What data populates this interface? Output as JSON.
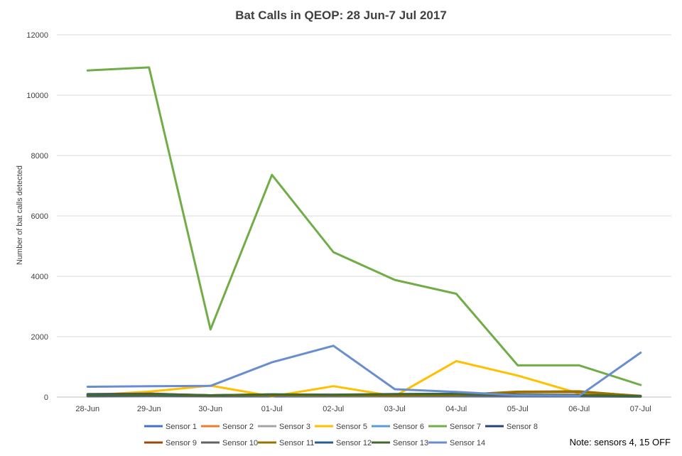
{
  "chart_data": {
    "type": "line",
    "title": "Bat Calls in QEOP: 28 Jun-7 Jul 2017",
    "xlabel": "",
    "ylabel": "Number of bat calls detected",
    "categories": [
      "28-Jun",
      "29-Jun",
      "30-Jun",
      "01-Jul",
      "02-Jul",
      "03-Jul",
      "04-Jul",
      "05-Jul",
      "06-Jul",
      "07-Jul"
    ],
    "ylim": [
      0,
      12000
    ],
    "yticks": [
      0,
      2000,
      4000,
      6000,
      8000,
      10000,
      12000
    ],
    "grid": true,
    "legend_position": "bottom",
    "note": "Note: sensors 4, 15 OFF",
    "series": [
      {
        "name": "Sensor 1",
        "color": "#4472C4",
        "values": [
          20,
          30,
          20,
          20,
          20,
          20,
          20,
          20,
          20,
          10
        ]
      },
      {
        "name": "Sensor 2",
        "color": "#ED7D31",
        "values": [
          60,
          120,
          40,
          50,
          40,
          30,
          40,
          60,
          70,
          20
        ]
      },
      {
        "name": "Sensor 3",
        "color": "#A5A5A5",
        "values": [
          30,
          40,
          30,
          40,
          30,
          30,
          30,
          40,
          40,
          20
        ]
      },
      {
        "name": "Sensor 5",
        "color": "#FFC000",
        "values": [
          60,
          180,
          380,
          20,
          360,
          30,
          1190,
          710,
          120,
          30
        ]
      },
      {
        "name": "Sensor 6",
        "color": "#5B9BD5",
        "values": [
          40,
          60,
          40,
          50,
          40,
          60,
          60,
          50,
          40,
          20
        ]
      },
      {
        "name": "Sensor 7",
        "color": "#70AD47",
        "values": [
          10820,
          10920,
          2240,
          7360,
          4800,
          3880,
          3420,
          1050,
          1050,
          400
        ]
      },
      {
        "name": "Sensor 8",
        "color": "#264478",
        "values": [
          50,
          60,
          50,
          60,
          70,
          80,
          90,
          60,
          50,
          30
        ]
      },
      {
        "name": "Sensor 9",
        "color": "#9E480E",
        "values": [
          100,
          110,
          60,
          80,
          60,
          40,
          60,
          160,
          170,
          40
        ]
      },
      {
        "name": "Sensor 10",
        "color": "#636363",
        "values": [
          30,
          40,
          30,
          40,
          40,
          40,
          40,
          40,
          30,
          20
        ]
      },
      {
        "name": "Sensor 11",
        "color": "#997300",
        "values": [
          80,
          90,
          50,
          60,
          50,
          50,
          70,
          180,
          190,
          30
        ]
      },
      {
        "name": "Sensor 12",
        "color": "#255E91",
        "values": [
          90,
          100,
          60,
          90,
          80,
          100,
          110,
          70,
          60,
          30
        ]
      },
      {
        "name": "Sensor 13",
        "color": "#43682B",
        "values": [
          60,
          80,
          60,
          90,
          70,
          90,
          100,
          80,
          70,
          30
        ]
      },
      {
        "name": "Sensor 14",
        "color": "#698ED0",
        "values": [
          340,
          360,
          370,
          1150,
          1700,
          260,
          170,
          60,
          40,
          1470
        ]
      }
    ]
  }
}
